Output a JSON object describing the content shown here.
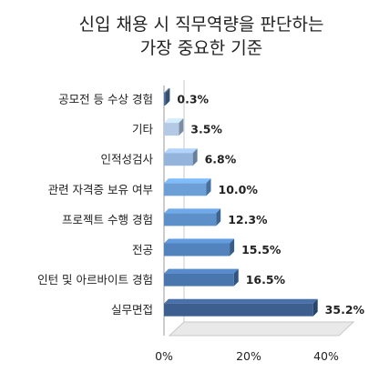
{
  "chart_data": {
    "type": "bar",
    "orientation": "horizontal",
    "title_lines": [
      "신입 채용 시 직무역량을 판단하는",
      "가장 중요한 기준"
    ],
    "categories": [
      "공모전 등 수상 경험",
      "기타",
      "인적성검사",
      "관련 자격증 보유 여부",
      "프로젝트 수행 경험",
      "전공",
      "인턴 및 아르바이트 경험",
      "실무면접"
    ],
    "values": [
      0.3,
      3.5,
      6.8,
      10.0,
      12.3,
      15.5,
      16.5,
      35.2
    ],
    "value_labels": [
      "0.3%",
      "3.5%",
      "6.8%",
      "10.0%",
      "12.3%",
      "15.5%",
      "16.5%",
      "35.2%"
    ],
    "bar_colors": [
      "#4f6f9a",
      "#b3c9e6",
      "#95b4db",
      "#6b9fd6",
      "#5d8fc8",
      "#5383bd",
      "#4a76ae",
      "#3d5f8f"
    ],
    "xlim": [
      0,
      40
    ],
    "x_ticks": [
      "0%",
      "20%",
      "40%"
    ],
    "x_tick_values": [
      0,
      20,
      40
    ],
    "legend": false,
    "grid": false,
    "style": "3d"
  }
}
